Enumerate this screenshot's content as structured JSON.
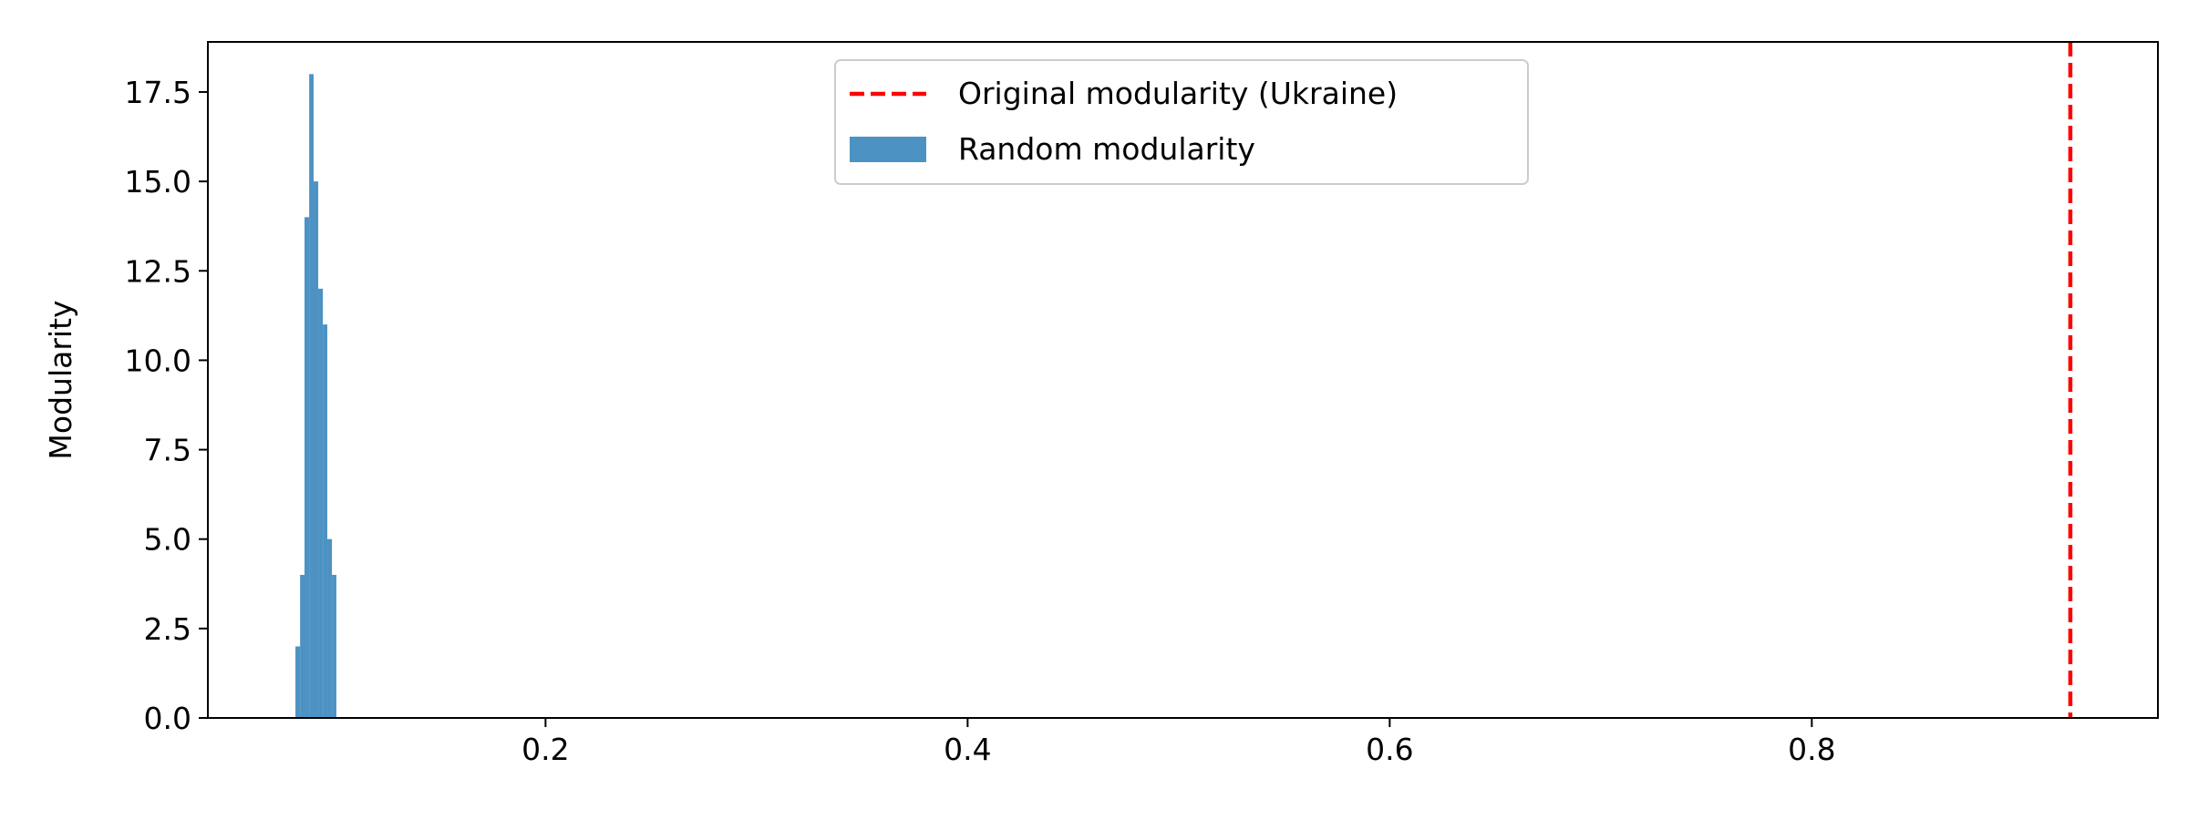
{
  "chart_data": {
    "type": "bar",
    "title": "",
    "xlabel": "",
    "ylabel": "Modularity",
    "xlim": [
      0.04,
      0.964
    ],
    "ylim": [
      0,
      18.9
    ],
    "xticks": [
      0.2,
      0.4,
      0.6,
      0.8
    ],
    "xtick_labels": [
      "0.2",
      "0.4",
      "0.6",
      "0.8"
    ],
    "yticks": [
      0,
      2.5,
      5,
      7.5,
      10,
      12.5,
      15,
      17.5
    ],
    "ytick_labels": [
      "0.0",
      "2.5",
      "5.0",
      "7.5",
      "10.0",
      "12.5",
      "15.0",
      "17.5"
    ],
    "grid": false,
    "legend_position": "top-center",
    "histogram": {
      "name": "Random modularity",
      "color": "#1f77b4",
      "opacity": 0.8,
      "bins": [
        {
          "x0": 0.0815,
          "x1": 0.0837,
          "value": 2
        },
        {
          "x0": 0.0837,
          "x1": 0.0858,
          "value": 4
        },
        {
          "x0": 0.0858,
          "x1": 0.088,
          "value": 14
        },
        {
          "x0": 0.088,
          "x1": 0.0901,
          "value": 18
        },
        {
          "x0": 0.0901,
          "x1": 0.0923,
          "value": 15
        },
        {
          "x0": 0.0923,
          "x1": 0.0945,
          "value": 12
        },
        {
          "x0": 0.0945,
          "x1": 0.0966,
          "value": 11
        },
        {
          "x0": 0.0966,
          "x1": 0.0988,
          "value": 5
        },
        {
          "x0": 0.0988,
          "x1": 0.1009,
          "value": 4
        }
      ]
    },
    "reference_line": {
      "name": "Original modularity (Ukraine)",
      "x": 0.9225,
      "color": "#ff0000",
      "style": "dashed"
    }
  }
}
